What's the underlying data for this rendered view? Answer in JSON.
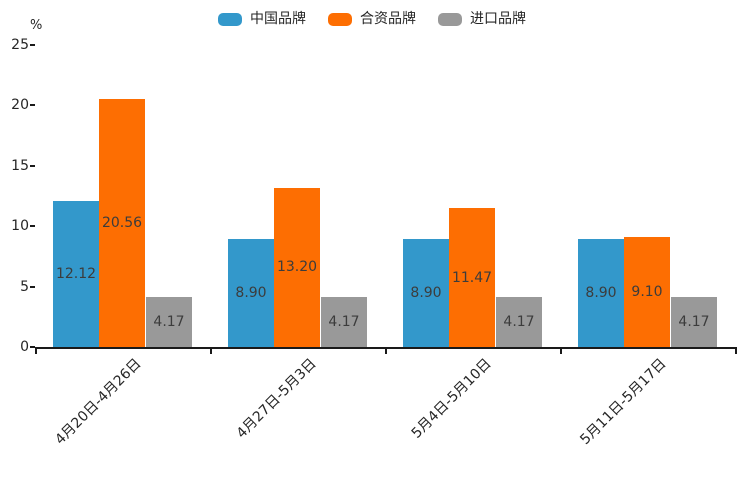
{
  "chart_data": {
    "type": "bar",
    "title": "",
    "xlabel": "",
    "ylabel": "%",
    "ylim": [
      0,
      25
    ],
    "yticks": [
      0,
      5,
      10,
      15,
      20,
      25
    ],
    "grid": "off",
    "legend_position": "top-center",
    "categories": [
      "4月20日-4月26日",
      "4月27日-5月3日",
      "5月4日-5月10日",
      "5月11日-5月17日"
    ],
    "series": [
      {
        "name": "中国品牌",
        "color": "#3398cb",
        "values": [
          12.12,
          8.9,
          8.9,
          8.9
        ]
      },
      {
        "name": "合资品牌",
        "color": "#fd6e02",
        "values": [
          20.56,
          13.2,
          11.47,
          9.1
        ]
      },
      {
        "name": "进口品牌",
        "color": "#999999",
        "values": [
          4.17,
          4.17,
          4.17,
          4.17
        ]
      }
    ]
  },
  "colors": {
    "background": "#ffffff",
    "axis": "#1a1a1a",
    "tick_label": "#262626",
    "value_label": "#3c3c3c"
  }
}
